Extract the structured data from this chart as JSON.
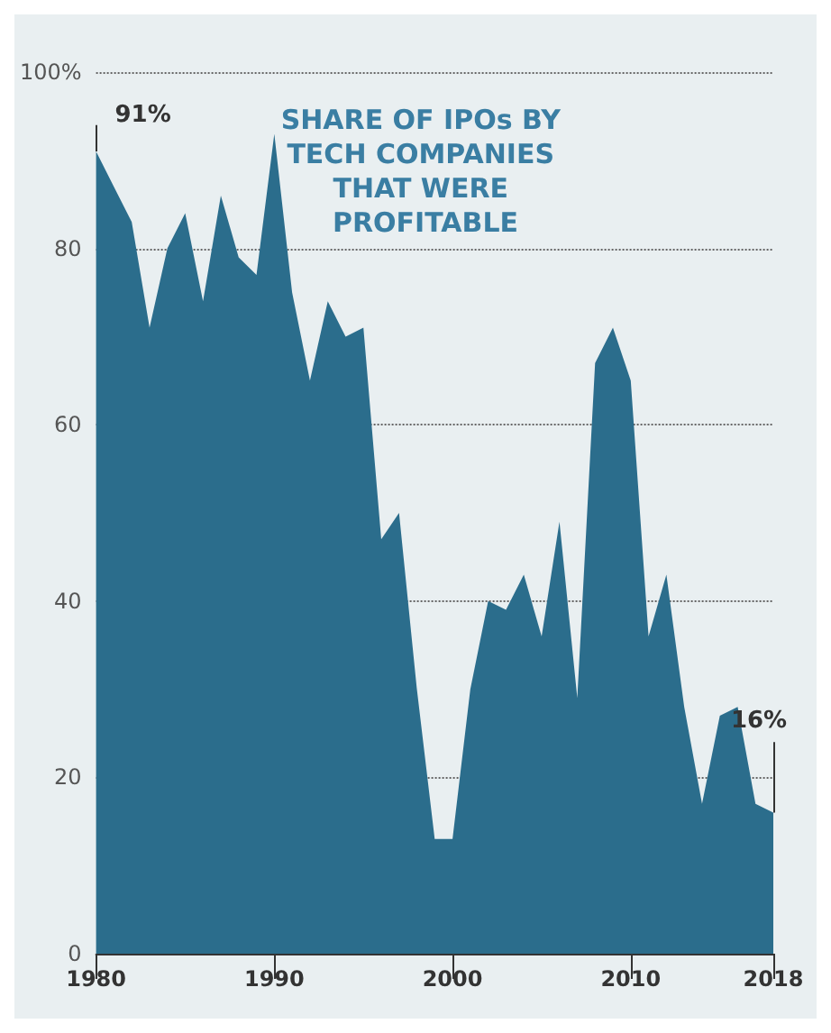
{
  "chart_data": {
    "type": "area",
    "title": "SHARE OF IPOs BY TECH COMPANIES THAT WERE PROFITABLE",
    "x": [
      1980,
      1981,
      1982,
      1983,
      1984,
      1985,
      1986,
      1987,
      1988,
      1989,
      1990,
      1991,
      1992,
      1993,
      1994,
      1995,
      1996,
      1997,
      1998,
      1999,
      2000,
      2001,
      2002,
      2003,
      2004,
      2005,
      2006,
      2007,
      2008,
      2009,
      2010,
      2011,
      2012,
      2013,
      2014,
      2015,
      2016,
      2017,
      2018
    ],
    "series": [
      {
        "color": "#2b6d8c",
        "values": [
          91,
          87,
          83,
          71,
          80,
          84,
          74,
          86,
          79,
          77,
          93,
          75,
          65,
          74,
          70,
          71,
          47,
          50,
          30,
          13,
          13,
          30,
          40,
          39,
          43,
          36,
          49,
          29,
          67,
          71,
          65,
          36,
          43,
          28,
          17,
          27,
          28,
          17,
          16
        ]
      }
    ],
    "xlim": [
      1980,
      2018
    ],
    "xticks": [
      1980,
      1990,
      2000,
      2010,
      2018
    ],
    "ylim": [
      0,
      100
    ],
    "yticks": [
      0,
      20,
      40,
      60,
      80,
      {
        "value": 100,
        "label": "100%"
      }
    ],
    "grid": "y",
    "annotations": [
      {
        "text": "91%",
        "x": 1980,
        "y": 91
      },
      {
        "text": "16%",
        "x": 2018,
        "y": 16
      }
    ]
  }
}
